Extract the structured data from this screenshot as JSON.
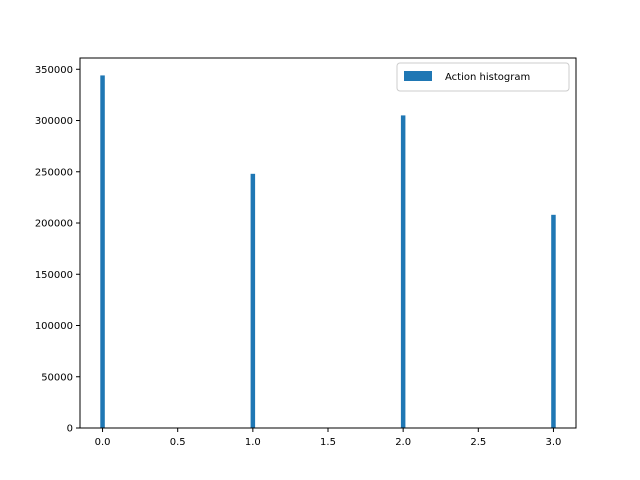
{
  "chart_data": {
    "type": "bar",
    "title": "",
    "xlabel": "",
    "ylabel": "",
    "xlim": [
      -0.15,
      3.15
    ],
    "ylim": [
      0,
      361000
    ],
    "xticks": [
      0.0,
      0.5,
      1.0,
      1.5,
      2.0,
      2.5,
      3.0
    ],
    "xtick_labels": [
      "0.0",
      "0.5",
      "1.0",
      "1.5",
      "2.0",
      "2.5",
      "3.0"
    ],
    "yticks": [
      0,
      50000,
      100000,
      150000,
      200000,
      250000,
      300000,
      350000
    ],
    "ytick_labels": [
      "0",
      "50000",
      "100000",
      "150000",
      "200000",
      "250000",
      "300000",
      "350000"
    ],
    "bin_width": 0.03,
    "bars": [
      {
        "x": 0.0,
        "value": 344000
      },
      {
        "x": 1.0,
        "value": 248000
      },
      {
        "x": 2.0,
        "value": 305000
      },
      {
        "x": 3.0,
        "value": 208000
      }
    ],
    "series": [
      {
        "name": "Action histogram",
        "color": "#1f77b4"
      }
    ],
    "legend": {
      "placement": "top-right"
    },
    "grid": false
  }
}
